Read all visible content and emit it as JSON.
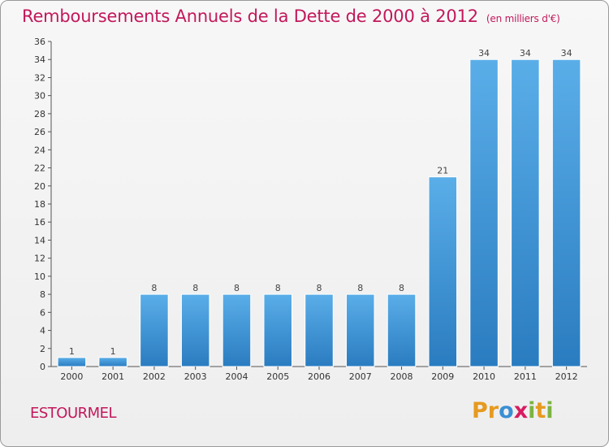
{
  "chart_data": {
    "type": "bar",
    "title": "Remboursements Annuels de la Dette de 2000 à 2012",
    "subtitle": "(en milliers d'€)",
    "categories": [
      "2000",
      "2001",
      "2002",
      "2003",
      "2004",
      "2005",
      "2006",
      "2007",
      "2008",
      "2009",
      "2010",
      "2011",
      "2012"
    ],
    "values": [
      1,
      1,
      8,
      8,
      8,
      8,
      8,
      8,
      8,
      21,
      34,
      34,
      34
    ],
    "ylim": [
      0,
      36
    ],
    "yticks": [
      0,
      2,
      4,
      6,
      8,
      10,
      12,
      14,
      16,
      18,
      20,
      22,
      24,
      26,
      28,
      30,
      32,
      34,
      36
    ],
    "xlabel": "",
    "ylabel": "",
    "grid": false,
    "bar_color": "#3a8fd4"
  },
  "footer": {
    "commune": "ESTOURMEL",
    "logo_letters": [
      "P",
      "r",
      "o",
      "x",
      "i",
      "t",
      "i"
    ],
    "logo_colors": [
      "#e69a1f",
      "#e69a1f",
      "#3a8fd4",
      "#d81b60",
      "#7cb342",
      "#e69a1f",
      "#7cb342"
    ]
  }
}
